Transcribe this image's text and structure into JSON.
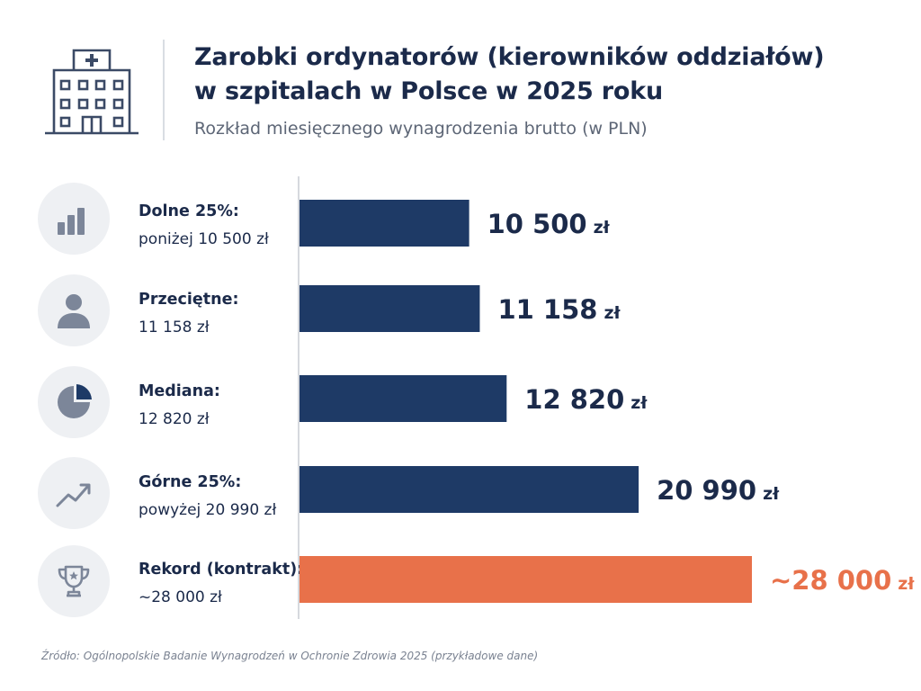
{
  "chart_data": {
    "type": "bar",
    "orientation": "horizontal",
    "title_line1": "Zarobki ordynatorów (kierowników oddziałów)",
    "title_line2": "w szpitalach w Polsce w 2025 roku",
    "subtitle": "Rozkład miesięcznego wynagrodzenia brutto (w PLN)",
    "unit": "zł",
    "xlim": [
      0,
      28000
    ],
    "grid": false,
    "categories": [
      {
        "label": "Dolne 25%:",
        "sublabel": "poniżej 10 500 zł",
        "icon": "bar-chart-icon"
      },
      {
        "label": "Przeciętne:",
        "sublabel": "11 158 zł",
        "icon": "person-icon"
      },
      {
        "label": "Mediana:",
        "sublabel": "12 820 zł",
        "icon": "pie-chart-icon"
      },
      {
        "label": "Górne 25%:",
        "sublabel": "powyżej 20 990 zł",
        "icon": "trend-up-icon"
      },
      {
        "label": "Rekord (kontrakt):",
        "sublabel": "~28 000 zł",
        "icon": "trophy-icon"
      }
    ],
    "values": [
      10500,
      11158,
      12820,
      20990,
      28000
    ],
    "value_labels": [
      "10 500",
      "11 158",
      "12 820",
      "20 990",
      "~28 000"
    ],
    "colors": [
      "#1e3a66",
      "#1e3a66",
      "#1e3a66",
      "#1e3a66",
      "#e8714a"
    ]
  },
  "source": "Źródło: Ogólnopolskie Badanie Wynagrodzeń w Ochronie Zdrowia 2025 (przykładowe dane)",
  "colors": {
    "bar": "#1e3a66",
    "highlight": "#e8714a",
    "icon": "#7c8699"
  }
}
